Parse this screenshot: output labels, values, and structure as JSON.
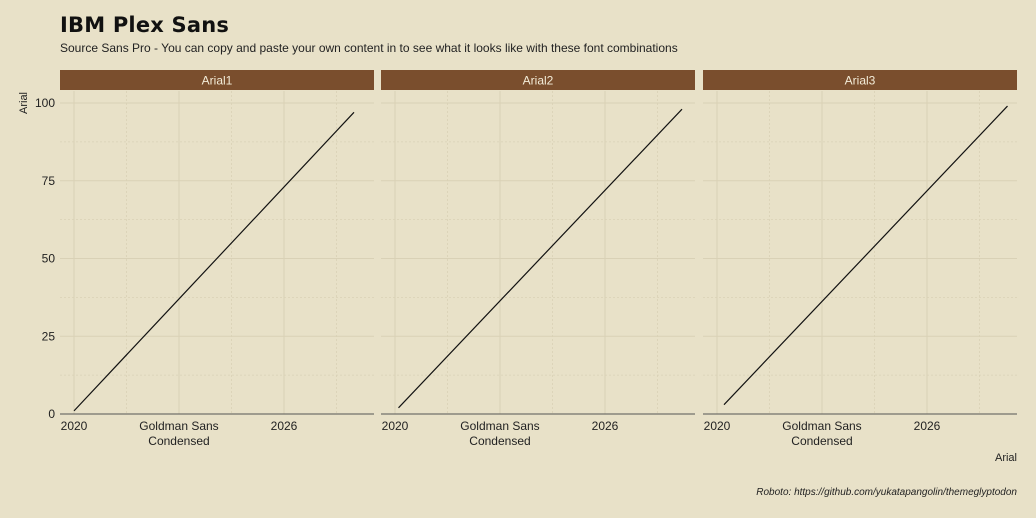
{
  "title": "IBM Plex Sans",
  "subtitle": "Source Sans Pro - You can copy and paste your own content in to see what it looks like with these font combinations",
  "caption": "Roboto: https://github.com/yukatapangolin/themeglyptodon",
  "colors": {
    "background": "#e8e1c8",
    "strip": "#7a4e2d",
    "strip_text": "#f3ecd8",
    "grid": "#d9d1b6",
    "line": "#111111",
    "axis": "#555555"
  },
  "chart_data": {
    "type": "line",
    "facets": [
      "Arial1",
      "Arial2",
      "Arial3"
    ],
    "xlabel": "Arial",
    "ylabel": "Arial",
    "x_ticks": [
      "2020",
      "Goldman Sans\nCondensed",
      "2026"
    ],
    "x_tick_values": [
      2020,
      2023,
      2026
    ],
    "y_ticks": [
      0,
      25,
      50,
      75,
      100
    ],
    "xlim": [
      2019.9,
      2028.6
    ],
    "ylim": [
      0,
      100
    ],
    "grid": true,
    "series": [
      {
        "facet": "Arial1",
        "x": [
          2020,
          2028
        ],
        "y": [
          1,
          97
        ]
      },
      {
        "facet": "Arial2",
        "x": [
          2020.1,
          2028.2
        ],
        "y": [
          2,
          98
        ]
      },
      {
        "facet": "Arial3",
        "x": [
          2020.2,
          2028.3
        ],
        "y": [
          3,
          99
        ]
      }
    ]
  }
}
